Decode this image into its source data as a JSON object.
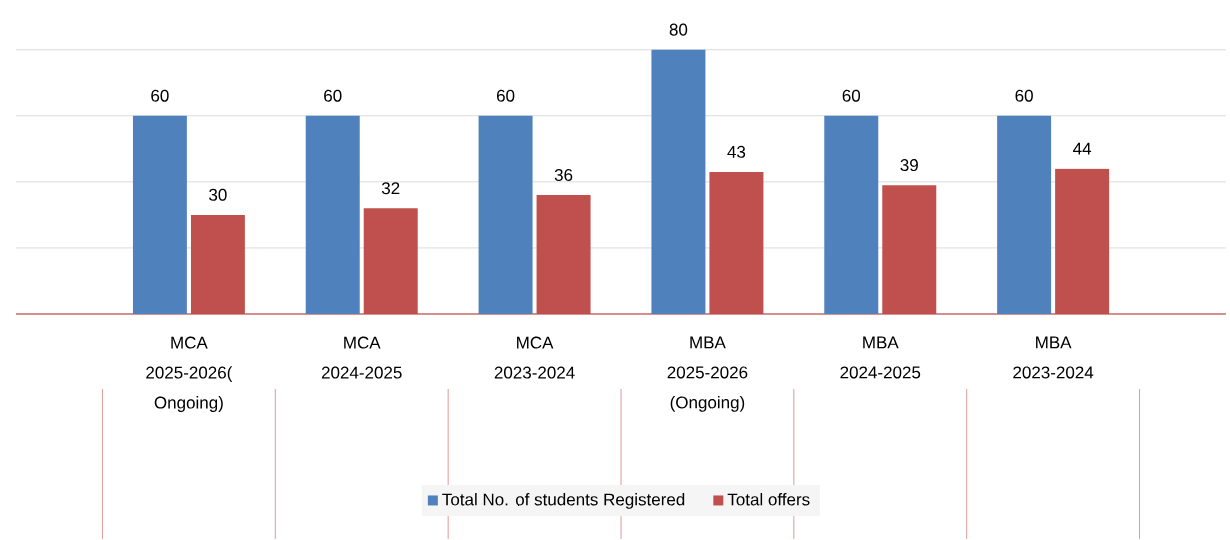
{
  "chart_data": {
    "type": "bar",
    "categories": [
      "MCA 2025-2026( Ongoing)",
      "MCA 2024-2025",
      "MCA 2023-2024",
      "MBA 2025-2026 (Ongoing)",
      "MBA 2024-2025",
      "MBA 2023-2024"
    ],
    "series": [
      {
        "name": "Total No. of students Registered",
        "color": "#4f81bd",
        "values": [
          60,
          60,
          60,
          80,
          60,
          60
        ]
      },
      {
        "name": "Total offers",
        "color": "#c0504d",
        "values": [
          30,
          32,
          36,
          43,
          39,
          44
        ]
      }
    ],
    "grid": "y",
    "tick_labels": "x",
    "data_labels": true,
    "legend": "bottom"
  }
}
